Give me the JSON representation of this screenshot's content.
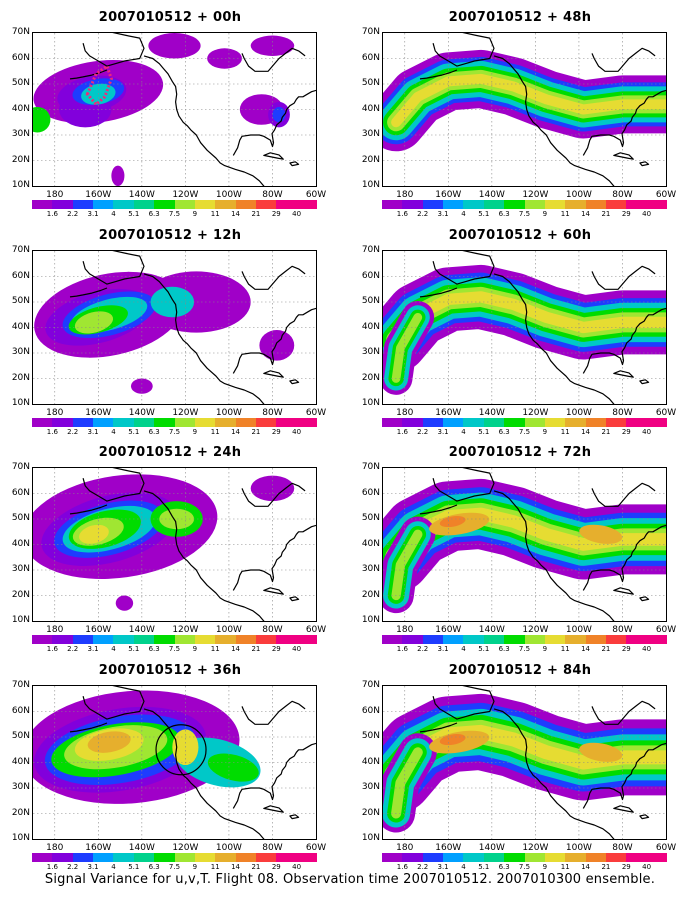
{
  "panels": [
    {
      "id": "p00",
      "title": "2007010512 + 00h",
      "lead": 0
    },
    {
      "id": "p48",
      "title": "2007010512 + 48h",
      "lead": 48
    },
    {
      "id": "p12",
      "title": "2007010512 + 12h",
      "lead": 12
    },
    {
      "id": "p60",
      "title": "2007010512 + 60h",
      "lead": 60
    },
    {
      "id": "p24",
      "title": "2007010512 + 24h",
      "lead": 24
    },
    {
      "id": "p72",
      "title": "2007010512 + 72h",
      "lead": 72
    },
    {
      "id": "p36",
      "title": "2007010512 + 36h",
      "lead": 36
    },
    {
      "id": "p84",
      "title": "2007010512 + 84h",
      "lead": 84
    }
  ],
  "axes": {
    "lat_labels": [
      "70N",
      "60N",
      "50N",
      "40N",
      "30N",
      "20N",
      "10N"
    ],
    "lon_labels": [
      "180",
      "160W",
      "140W",
      "120W",
      "100W",
      "80W",
      "60W"
    ]
  },
  "colorbar": {
    "levels": [
      "1.6",
      "2.2",
      "3.1",
      "4",
      "5.1",
      "6.3",
      "7.5",
      "9",
      "11",
      "14",
      "21",
      "29",
      "40"
    ],
    "colors": [
      "#a000c8",
      "#8200dc",
      "#1e3cff",
      "#00a0ff",
      "#00c8c8",
      "#00d28c",
      "#00dc00",
      "#a0e632",
      "#e6dc32",
      "#e6af2d",
      "#f08228",
      "#fa3c3c",
      "#f00082"
    ]
  },
  "caption": "Signal Variance for u,v,T. Flight 08. Observation time 2007010512. 2007010300 ensemble.",
  "annotations": {
    "p00": "target observation region (dotted)",
    "p36": "circled region"
  }
}
